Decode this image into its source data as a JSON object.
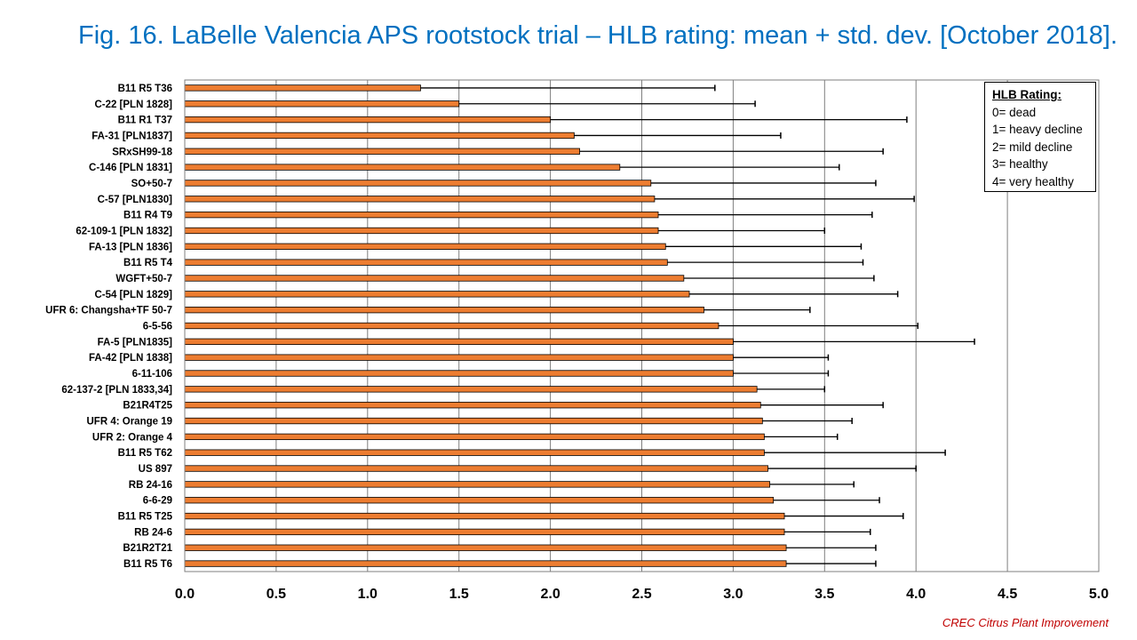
{
  "title": "Fig. 16. LaBelle Valencia APS rootstock trial – HLB rating: mean + std. dev. [October 2018].",
  "credit": "CREC Citrus Plant Improvement",
  "legend": {
    "title": "HLB Rating:",
    "items": [
      "0= dead",
      "1= heavy decline",
      "2= mild decline",
      "3= healthy",
      "4= very healthy"
    ]
  },
  "chart_data": {
    "type": "bar",
    "orientation": "horizontal",
    "xlim": [
      0,
      5
    ],
    "x_ticks": [
      "0.0",
      "0.5",
      "1.0",
      "1.5",
      "2.0",
      "2.5",
      "3.0",
      "3.5",
      "4.0",
      "4.5",
      "5.0"
    ],
    "grid": true,
    "bar_color": "#ED7D31",
    "categories": [
      "B11 R5 T36",
      "C-22 [PLN 1828]",
      "B11 R1 T37",
      "FA-31 [PLN1837]",
      "SRxSH99-18",
      "C-146 [PLN 1831]",
      "SO+50-7",
      "C-57 [PLN1830]",
      "B11 R4 T9",
      "62-109-1 [PLN 1832]",
      "FA-13 [PLN 1836]",
      "B11 R5 T4",
      "WGFT+50-7",
      "C-54 [PLN 1829]",
      "UFR 6: Changsha+TF 50-7",
      "6-5-56",
      "FA-5 [PLN1835]",
      "FA-42 [PLN 1838]",
      "6-11-106",
      "62-137-2 [PLN 1833,34]",
      "B21R4T25",
      "UFR 4: Orange 19",
      "UFR 2: Orange 4",
      "B11 R5 T62",
      "US 897",
      "RB 24-16",
      "6-6-29",
      "B11 R5 T25",
      "RB 24-6",
      "B21R2T21",
      "B11 R5 T6"
    ],
    "values": [
      1.29,
      1.5,
      2.0,
      2.13,
      2.16,
      2.38,
      2.55,
      2.57,
      2.59,
      2.59,
      2.63,
      2.64,
      2.73,
      2.76,
      2.84,
      2.92,
      3.0,
      3.0,
      3.0,
      3.13,
      3.15,
      3.16,
      3.17,
      3.17,
      3.19,
      3.2,
      3.22,
      3.28,
      3.28,
      3.29,
      3.29
    ],
    "std_dev": [
      1.61,
      1.62,
      1.95,
      1.13,
      1.66,
      1.2,
      1.23,
      1.42,
      1.17,
      0.91,
      1.07,
      1.07,
      1.04,
      1.14,
      0.58,
      1.09,
      1.32,
      0.52,
      0.52,
      0.37,
      0.67,
      0.49,
      0.4,
      0.99,
      0.81,
      0.46,
      0.58,
      0.65,
      0.47,
      0.49,
      0.49
    ]
  }
}
